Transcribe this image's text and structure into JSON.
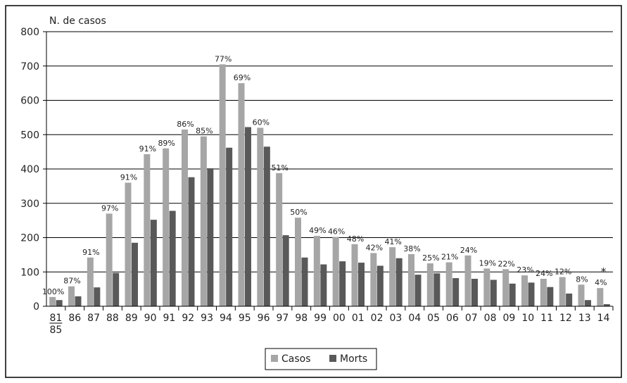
{
  "chart_data": {
    "type": "bar",
    "ylabel": "N. de casos",
    "ylim": [
      0,
      800
    ],
    "yticks": [
      0,
      100,
      200,
      300,
      400,
      500,
      600,
      700,
      800
    ],
    "grid": true,
    "legend_position": "bottom",
    "categories": [
      "81\n85",
      "86",
      "87",
      "88",
      "89",
      "90",
      "91",
      "92",
      "93",
      "94",
      "95",
      "96",
      "97",
      "98",
      "99",
      "00",
      "01",
      "02",
      "03",
      "04",
      "05",
      "06",
      "07",
      "08",
      "09",
      "10",
      "11",
      "12",
      "13",
      "14"
    ],
    "series": [
      {
        "name": "Casos",
        "color": "#a6a6a6",
        "values": [
          27,
          58,
          142,
          270,
          360,
          443,
          460,
          515,
          495,
          705,
          650,
          520,
          388,
          258,
          205,
          202,
          181,
          155,
          172,
          152,
          125,
          128,
          148,
          110,
          108,
          90,
          80,
          85,
          63,
          53
        ]
      },
      {
        "name": "Morts",
        "color": "#595959",
        "values": [
          18,
          29,
          55,
          97,
          185,
          252,
          278,
          376,
          402,
          462,
          522,
          465,
          207,
          142,
          122,
          131,
          127,
          118,
          140,
          92,
          96,
          82,
          80,
          77,
          66,
          69,
          56,
          37,
          18,
          6
        ]
      }
    ],
    "annotations": [
      "100%",
      "87%",
      "91%",
      "97%",
      "91%",
      "91%",
      "89%",
      "86%",
      "85%",
      "77%",
      "69%",
      "60%",
      "51%",
      "50%",
      "49%",
      "46%",
      "48%",
      "42%",
      "41%",
      "38%",
      "25%",
      "21%",
      "24%",
      "19%",
      "22%",
      "23%",
      "24%",
      "12%",
      "8%",
      "4%"
    ],
    "footnote_marker": "*"
  }
}
